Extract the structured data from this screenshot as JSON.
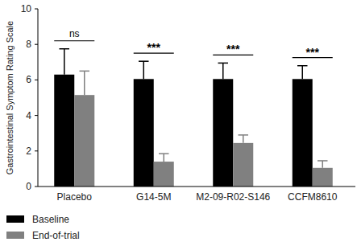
{
  "chart_data": {
    "type": "bar",
    "y_label": "Gastrointestinal Symptom Rating Scale",
    "categories": [
      "Placebo",
      "G14-5M",
      "M2-09-R02-S146",
      "CCFM8610"
    ],
    "series": [
      {
        "name": "Baseline",
        "color": "#000000",
        "values": [
          6.3,
          6.05,
          6.05,
          6.05
        ],
        "errors": [
          1.45,
          1.0,
          0.9,
          0.75
        ]
      },
      {
        "name": "End-of-trial",
        "color": "#808080",
        "values": [
          5.15,
          1.4,
          2.45,
          1.05
        ],
        "errors": [
          1.35,
          0.45,
          0.45,
          0.4
        ]
      }
    ],
    "annotations": [
      "ns",
      "***",
      "***",
      "***"
    ],
    "ylim": [
      0,
      10
    ],
    "yticks": [
      0,
      2,
      4,
      6,
      8,
      10
    ],
    "legend": "bottom-left"
  }
}
